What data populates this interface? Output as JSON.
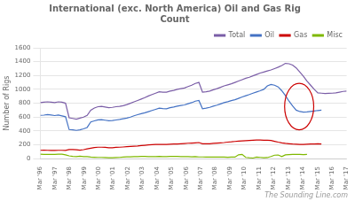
{
  "chart_data": {
    "type": "line",
    "title": "International (exc. North America) Oil and Gas Rig\nCount",
    "y_label": "Number of Rigs",
    "annotations": [
      "The Sounding Line.com"
    ],
    "x": [
      0,
      0.247059,
      0.494118,
      0.741176,
      0.988235,
      1.235294,
      1.482353,
      1.729412,
      1.976471,
      2.223529,
      2.470588,
      2.717647,
      2.964706,
      3.211765,
      3.458824,
      3.705882,
      3.952941,
      4.2,
      4.447059,
      4.694118,
      4.941176,
      5.188235,
      5.435294,
      5.682353,
      5.929412,
      6.176471,
      6.423529,
      6.670588,
      6.917647,
      7.164706,
      7.411765,
      7.658824,
      7.905882,
      8.152941,
      8.4,
      8.647059,
      8.894118,
      9.141176,
      9.388235,
      9.635294,
      9.882353,
      10.129412,
      10.376471,
      10.623529,
      10.870588,
      11.117647,
      11.364706,
      11.611765,
      11.858824,
      12.105882,
      12.352941,
      12.6,
      12.847059,
      13.094118,
      13.341176,
      13.588235,
      13.835294,
      14.082353,
      14.329412,
      14.576471,
      14.823529,
      15.070588,
      15.317647,
      15.564706,
      15.811765,
      16.058824,
      16.305882,
      16.552941,
      16.8,
      17.047059,
      17.294118,
      17.541176,
      17.788235,
      18.035294,
      18.282353,
      18.529412,
      18.776471,
      19.023529,
      19.270588,
      19.517647,
      19.764706,
      20.011765,
      20.258824,
      20.505882,
      20.752941,
      21
    ],
    "series": [
      {
        "name": "Total",
        "color": "#7B5EA7",
        "values": [
          810,
          815,
          820,
          815,
          810,
          820,
          815,
          800,
          590,
          580,
          570,
          585,
          600,
          625,
          700,
          730,
          750,
          755,
          745,
          735,
          740,
          750,
          755,
          765,
          780,
          800,
          820,
          840,
          860,
          880,
          905,
          925,
          945,
          965,
          960,
          960,
          975,
          985,
          1000,
          1010,
          1020,
          1040,
          1060,
          1085,
          1100,
          960,
          965,
          975,
          995,
          1010,
          1030,
          1050,
          1065,
          1080,
          1100,
          1120,
          1140,
          1160,
          1175,
          1195,
          1215,
          1235,
          1250,
          1265,
          1280,
          1300,
          1320,
          1345,
          1375,
          1370,
          1350,
          1310,
          1250,
          1190,
          1120,
          1060,
          1000,
          950,
          945,
          940,
          942,
          945,
          950,
          960,
          970,
          975
        ]
      },
      {
        "name": "Oil",
        "color": "#4472C4",
        "values": [
          625,
          628,
          635,
          630,
          622,
          630,
          618,
          605,
          420,
          415,
          408,
          415,
          430,
          450,
          530,
          545,
          560,
          562,
          555,
          548,
          550,
          558,
          565,
          575,
          585,
          600,
          618,
          635,
          648,
          662,
          678,
          695,
          712,
          728,
          722,
          720,
          735,
          745,
          758,
          768,
          775,
          792,
          808,
          830,
          840,
          720,
          728,
          740,
          758,
          772,
          790,
          808,
          822,
          838,
          850,
          870,
          890,
          908,
          925,
          945,
          962,
          980,
          1000,
          1050,
          1070,
          1060,
          1035,
          980,
          910,
          830,
          760,
          700,
          680,
          672,
          675,
          682,
          688,
          695,
          700,
          null,
          null,
          null,
          null,
          null,
          null,
          null
        ]
      },
      {
        "name": "Gas",
        "color": "#CC0000",
        "values": [
          120,
          122,
          120,
          118,
          118,
          120,
          120,
          118,
          130,
          132,
          128,
          122,
          130,
          140,
          150,
          160,
          165,
          165,
          162,
          158,
          158,
          162,
          165,
          168,
          172,
          175,
          178,
          182,
          188,
          193,
          198,
          202,
          205,
          205,
          205,
          205,
          208,
          210,
          212,
          215,
          218,
          222,
          225,
          228,
          232,
          215,
          215,
          215,
          220,
          225,
          228,
          232,
          238,
          242,
          248,
          252,
          255,
          258,
          262,
          265,
          268,
          268,
          265,
          265,
          262,
          250,
          238,
          228,
          220,
          215,
          210,
          208,
          205,
          205,
          208,
          210,
          212,
          215,
          210,
          null,
          null,
          null,
          null,
          null,
          null,
          null
        ]
      },
      {
        "name": "Misc",
        "color": "#7FB800",
        "values": [
          65,
          62,
          62,
          62,
          62,
          63,
          63,
          55,
          40,
          32,
          30,
          35,
          28,
          30,
          22,
          20,
          18,
          18,
          15,
          13,
          13,
          15,
          18,
          22,
          25,
          25,
          28,
          30,
          32,
          32,
          30,
          30,
          30,
          32,
          30,
          30,
          32,
          33,
          32,
          30,
          28,
          28,
          25,
          28,
          24,
          24,
          22,
          22,
          22,
          22,
          22,
          22,
          20,
          22,
          22,
          55,
          62,
          18,
          12,
          8,
          22,
          18,
          12,
          15,
          30,
          50,
          52,
          30,
          55,
          58,
          62,
          62,
          62,
          58,
          62,
          null,
          null,
          null,
          null,
          null,
          null,
          null,
          null,
          null,
          null,
          null
        ]
      }
    ],
    "xlim": [
      0,
      21
    ],
    "xticks": [
      {
        "value": 0,
        "label": "Mar '96"
      },
      {
        "value": 1,
        "label": "Mar '97"
      },
      {
        "value": 2,
        "label": "Mar '98"
      },
      {
        "value": 3,
        "label": "Mar '99"
      },
      {
        "value": 4,
        "label": "Mar '00"
      },
      {
        "value": 5,
        "label": "Mar '01"
      },
      {
        "value": 6,
        "label": "Mar '02"
      },
      {
        "value": 7,
        "label": "Mar '03"
      },
      {
        "value": 8,
        "label": "Mar '04"
      },
      {
        "value": 9,
        "label": "Mar '05"
      },
      {
        "value": 10,
        "label": "Mar '06"
      },
      {
        "value": 11,
        "label": "Mar '07"
      },
      {
        "value": 12,
        "label": "Mar '08"
      },
      {
        "value": 13,
        "label": "Mar '09"
      },
      {
        "value": 14,
        "label": "Mar '10"
      },
      {
        "value": 15,
        "label": "Mar '11"
      },
      {
        "value": 16,
        "label": "Mar '12"
      },
      {
        "value": 17,
        "label": "Mar '13"
      },
      {
        "value": 18,
        "label": "Mar '14"
      },
      {
        "value": 19,
        "label": "Mar '15"
      },
      {
        "value": 20,
        "label": "Mar '16"
      },
      {
        "value": 21,
        "label": "Mar '17"
      }
    ],
    "ylim": [
      0,
      1600
    ],
    "yticks": [
      0,
      200,
      400,
      600,
      800,
      1000,
      1200,
      1400,
      1600
    ],
    "grid": "y",
    "legend": "upper right"
  }
}
